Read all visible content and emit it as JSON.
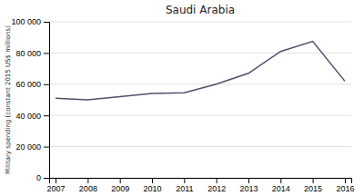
{
  "chart_data": {
    "type": "line",
    "title": "Saudi Arabia",
    "ylabel": "Military spending (constant 2015 US$ millions)",
    "x": [
      2007,
      2008,
      2009,
      2010,
      2011,
      2012,
      2013,
      2014,
      2015,
      2016
    ],
    "values": [
      51000,
      50000,
      52000,
      54000,
      54500,
      60000,
      67000,
      81000,
      87500,
      62000
    ],
    "color": "#5a4a6a",
    "xlim": [
      2006.8,
      2016.2
    ],
    "xticks": [
      2007,
      2008,
      2009,
      2010,
      2011,
      2012,
      2013,
      2014,
      2015,
      2016
    ],
    "ylim": [
      0,
      100000
    ],
    "yticks": [
      0,
      {
        "value": 20000,
        "label": "20 000"
      },
      {
        "value": 40000,
        "label": "40 000"
      },
      {
        "value": 60000,
        "label": "60 000"
      },
      {
        "value": 80000,
        "label": "80 000"
      },
      {
        "value": 100000,
        "label": "100 000"
      }
    ],
    "grid": true
  }
}
